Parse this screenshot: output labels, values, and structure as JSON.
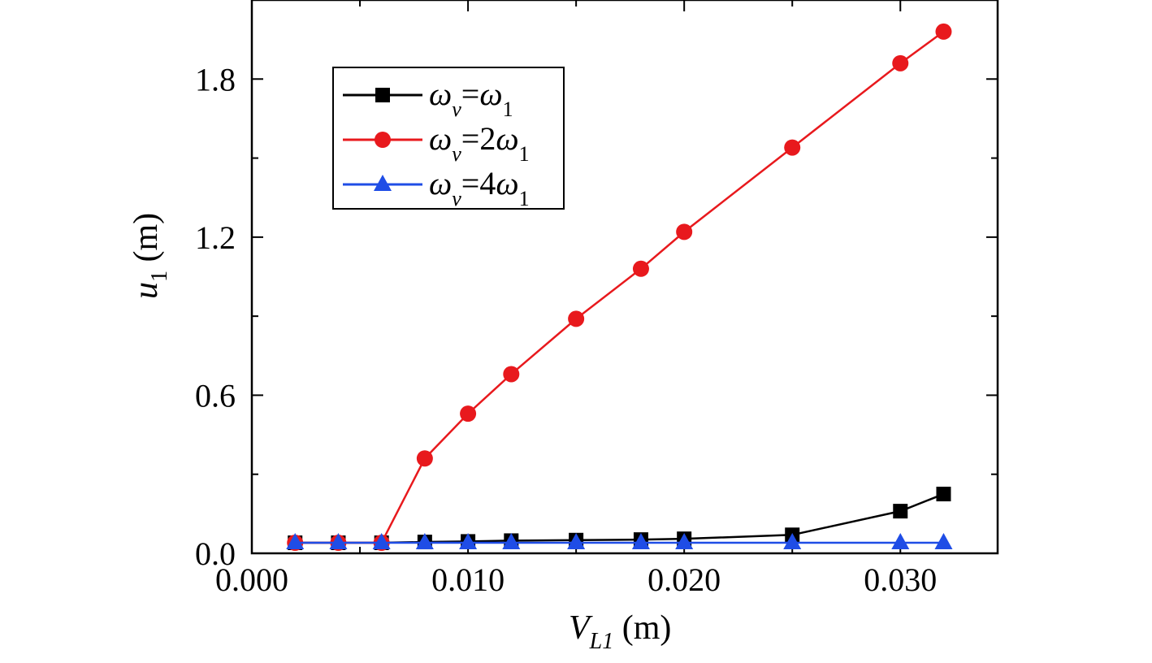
{
  "chart_data": {
    "type": "line",
    "x_ticks": [
      "0.000",
      "0.010",
      "0.020",
      "0.030"
    ],
    "y_ticks": [
      "0.0",
      "0.6",
      "1.2",
      "1.8"
    ],
    "xlim": [
      0,
      0.0345
    ],
    "ylim": [
      0,
      2.1
    ],
    "xlabel": {
      "main": "V",
      "sub": "L1",
      "unit": " (m)"
    },
    "ylabel": {
      "main": "u",
      "sub": "1",
      "unit": " (m)"
    },
    "legend_position": "upper-left",
    "series": [
      {
        "name": "ω_v=ω_1",
        "legend": {
          "a": "ω",
          "a_sub": "v",
          "mid": "=",
          "coef": "",
          "b": "ω",
          "b_sub": "1"
        },
        "color": "#000000",
        "marker": "square",
        "x": [
          0.002,
          0.004,
          0.006,
          0.008,
          0.01,
          0.012,
          0.015,
          0.018,
          0.02,
          0.025,
          0.03,
          0.032
        ],
        "y": [
          0.04,
          0.04,
          0.04,
          0.043,
          0.045,
          0.048,
          0.05,
          0.052,
          0.055,
          0.07,
          0.16,
          0.225
        ]
      },
      {
        "name": "ω_v=2ω_1",
        "legend": {
          "a": "ω",
          "a_sub": "v",
          "mid": "=",
          "coef": "2",
          "b": "ω",
          "b_sub": "1"
        },
        "color": "#e8191d",
        "marker": "circle",
        "x": [
          0.002,
          0.004,
          0.006,
          0.008,
          0.01,
          0.012,
          0.015,
          0.018,
          0.02,
          0.025,
          0.03,
          0.032
        ],
        "y": [
          0.04,
          0.04,
          0.04,
          0.36,
          0.53,
          0.68,
          0.89,
          1.08,
          1.22,
          1.54,
          1.86,
          1.98
        ]
      },
      {
        "name": "ω_v=4ω_1",
        "legend": {
          "a": "ω",
          "a_sub": "v",
          "mid": "=",
          "coef": "4",
          "b": "ω",
          "b_sub": "1"
        },
        "color": "#1f4de6",
        "marker": "triangle",
        "x": [
          0.002,
          0.004,
          0.006,
          0.008,
          0.01,
          0.012,
          0.015,
          0.018,
          0.02,
          0.025,
          0.03,
          0.032
        ],
        "y": [
          0.04,
          0.04,
          0.04,
          0.04,
          0.04,
          0.04,
          0.04,
          0.04,
          0.04,
          0.04,
          0.04,
          0.04
        ]
      }
    ]
  }
}
